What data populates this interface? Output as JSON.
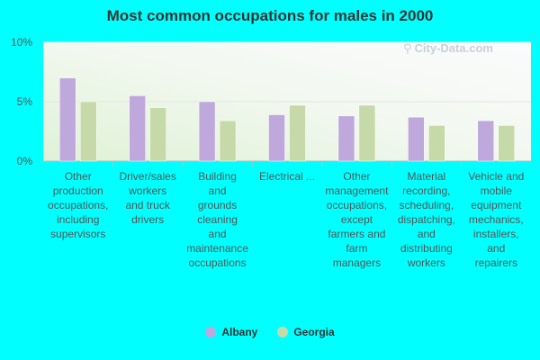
{
  "chart_data": {
    "type": "bar",
    "title": "Most common occupations for males in 2000",
    "categories": [
      "Other production occupations, including supervisors",
      "Driver/sales workers and truck drivers",
      "Building and grounds cleaning and maintenance occupations",
      "Electrical ...",
      "Other management occupations, except farmers and farm managers",
      "Material recording, scheduling, dispatching, and distributing workers",
      "Vehicle and mobile equipment mechanics, installers, and repairers"
    ],
    "category_lines": [
      [
        "Other",
        "production",
        "occupations,",
        "including",
        "supervisors"
      ],
      [
        "Driver/sales",
        "workers",
        "and truck",
        "drivers"
      ],
      [
        "Building",
        "and",
        "grounds",
        "cleaning",
        "and",
        "maintenance",
        "occupations"
      ],
      [
        "Electrical ..."
      ],
      [
        "Other",
        "management",
        "occupations,",
        "except",
        "farmers and",
        "farm",
        "managers"
      ],
      [
        "Material",
        "recording,",
        "scheduling,",
        "dispatching,",
        "and",
        "distributing",
        "workers"
      ],
      [
        "Vehicle and",
        "mobile",
        "equipment",
        "mechanics,",
        "installers,",
        "and",
        "repairers"
      ]
    ],
    "series": [
      {
        "name": "Albany",
        "color": "#bfa8dc",
        "values": [
          7.0,
          5.5,
          5.0,
          3.9,
          3.8,
          3.7,
          3.4
        ]
      },
      {
        "name": "Georgia",
        "color": "#c6d9a8",
        "values": [
          5.0,
          4.5,
          3.4,
          4.7,
          4.7,
          3.0,
          3.0
        ]
      }
    ],
    "y_ticks": [
      "0%",
      "5%",
      "10%"
    ],
    "ylim": [
      0,
      10
    ],
    "grid": true,
    "legend_position": "bottom"
  },
  "watermark": {
    "text": "City-Data.com",
    "icon": "search-icon"
  }
}
